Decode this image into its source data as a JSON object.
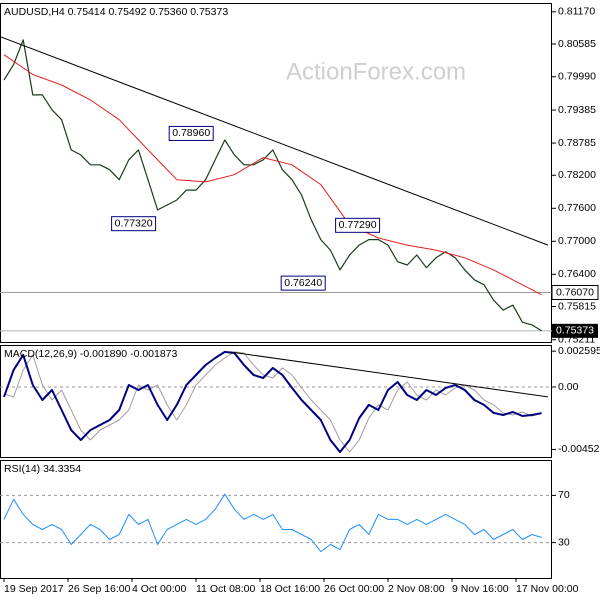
{
  "chart_data": [
    {
      "type": "line",
      "title": "AUDUSD,H4 0.75414 0.75492 0.75360 0.75373",
      "watermark": "ActionForex.com",
      "x": [
        0,
        3,
        6,
        9,
        12,
        15,
        18,
        21,
        24,
        27,
        30,
        33,
        36,
        39,
        42,
        45,
        48,
        51,
        54,
        57,
        60,
        63,
        66,
        69,
        72,
        75,
        78,
        81,
        84,
        87,
        90,
        93,
        96,
        99,
        102,
        105,
        108,
        111,
        114,
        117,
        120,
        123,
        126,
        129,
        132,
        135,
        138,
        141,
        144,
        147,
        150,
        153,
        156,
        159,
        162,
        165,
        168
      ],
      "xlim": [
        -1.25,
        171.25
      ],
      "ylim": [
        0.7517,
        0.8133
      ],
      "grid": false,
      "yticks": [
        {
          "value": 0.8117,
          "label": "0.81170"
        },
        {
          "value": 0.80585,
          "label": "0.80585"
        },
        {
          "value": 0.7999,
          "label": "0.79990"
        },
        {
          "value": 0.79385,
          "label": "0.79385"
        },
        {
          "value": 0.78785,
          "label": "0.78785"
        },
        {
          "value": 0.782,
          "label": "0.78200"
        },
        {
          "value": 0.776,
          "label": "0.77600"
        },
        {
          "value": 0.77,
          "label": "0.77000"
        },
        {
          "value": 0.764,
          "label": "0.76400"
        },
        {
          "value": 0.75815,
          "label": "0.75815"
        },
        0.75211
      ],
      "series": [
        {
          "color": "#1c3a1c",
          "line_width": 1.2,
          "values": [
            0.7993,
            0.8021,
            0.8066,
            0.7966,
            0.7966,
            0.7939,
            0.7921,
            0.7866,
            0.7857,
            0.7839,
            0.7839,
            0.783,
            0.7812,
            0.7848,
            0.7866,
            0.7812,
            0.7757,
            0.7766,
            0.7775,
            0.7793,
            0.7793,
            0.7812,
            0.7848,
            0.7884,
            0.7857,
            0.7839,
            0.7839,
            0.7848,
            0.7866,
            0.783,
            0.7812,
            0.7784,
            0.7739,
            0.7703,
            0.7684,
            0.7648,
            0.7675,
            0.7693,
            0.7703,
            0.7703,
            0.7693,
            0.7663,
            0.7657,
            0.7675,
            0.7652,
            0.767,
            0.7681,
            0.767,
            0.7648,
            0.763,
            0.7621,
            0.7593,
            0.7575,
            0.7584,
            0.7553,
            0.7548,
            0.75373
          ]
        },
        {
          "color": "#e02020",
          "line_width": 1,
          "x": [
            0,
            9,
            18,
            27,
            36,
            45,
            54,
            63,
            72,
            81,
            90,
            99,
            108,
            117,
            126,
            135,
            144,
            153,
            162,
            168
          ],
          "values": [
            0.8039,
            0.8003,
            0.7984,
            0.7957,
            0.7921,
            0.7866,
            0.7812,
            0.7808,
            0.7821,
            0.7852,
            0.7839,
            0.7803,
            0.773,
            0.7706,
            0.7693,
            0.7684,
            0.767,
            0.7648,
            0.7621,
            0.7603
          ]
        },
        {
          "color": "#000000",
          "line_width": 1,
          "x": [
            -1.25,
            170
          ],
          "values": [
            0.8072,
            0.7693
          ]
        }
      ],
      "annotations": [
        {
          "x": 66,
          "value": 0.7896,
          "label": "0.78960"
        },
        {
          "x": 48,
          "value": 0.7732,
          "label": "0.77320"
        },
        {
          "x": 118,
          "value": 0.7729,
          "label": "0.77290"
        },
        {
          "x": 101,
          "value": 0.7624,
          "label": "0.76240"
        }
      ],
      "levels": [
        {
          "value": 0.7607,
          "label": "0.76070",
          "color": "#9a9a9a"
        }
      ],
      "last_price": 0.75373
    },
    {
      "type": "line",
      "title": "MACD(12,26,9) -0.001890 -0.001873",
      "x": [
        0,
        3,
        6,
        9,
        12,
        15,
        18,
        21,
        24,
        27,
        30,
        33,
        36,
        39,
        42,
        45,
        48,
        51,
        54,
        57,
        60,
        63,
        66,
        69,
        72,
        75,
        78,
        81,
        84,
        87,
        90,
        93,
        96,
        99,
        102,
        105,
        108,
        111,
        114,
        117,
        120,
        123,
        126,
        129,
        132,
        135,
        138,
        141,
        144,
        147,
        150,
        153,
        156,
        159,
        162,
        165,
        168
      ],
      "xlim": [
        -1.25,
        171.25
      ],
      "ylim": [
        -0.00507,
        0.00304
      ],
      "grid": true,
      "yticks": [
        0.002595,
        {
          "value": 0,
          "label": "0.00"
        },
        -0.004522
      ],
      "grid_ticks": [
        1
      ],
      "series": [
        {
          "color": "#a0a0a0",
          "line_width": 1,
          "values": [
            -0.0005,
            -0.00072,
            0.00123,
            0.00232,
            0.00014,
            -0.00094,
            -0.00022,
            -0.00167,
            -0.00312,
            -0.00384,
            -0.00312,
            -0.00275,
            -0.00239,
            -0.00167,
            0.00014,
            -0.00022,
            0.00014,
            -0.0013,
            -0.00239,
            -0.0013,
            0.00014,
            0.00087,
            0.00159,
            0.0021,
            0.00254,
            0.00246,
            0.00159,
            0.00087,
            0.00065,
            0.00138,
            0.00087,
            -7e-05,
            -0.00094,
            -0.00167,
            -0.00239,
            -0.00384,
            -0.00471,
            -0.00384,
            -0.00225,
            -0.0013,
            -0.00167,
            -0.00022,
            0.00036,
            -0.00058,
            -0.00094,
            -0.00022,
            -0.00058,
            -7e-05,
            0.00014,
            -0.00022,
            -0.00094,
            -0.0013,
            -0.00188,
            -0.00203,
            -0.00181,
            -0.0021,
            -0.001873
          ]
        },
        {
          "color": "#000080",
          "line_width": 2,
          "values": [
            -0.00072,
            0.00123,
            0.00232,
            0.00014,
            -0.00094,
            -0.00022,
            -0.00167,
            -0.00312,
            -0.00384,
            -0.00312,
            -0.00275,
            -0.00239,
            -0.00167,
            0.00014,
            -0.00022,
            0.00014,
            -0.0013,
            -0.00239,
            -0.0013,
            0.00014,
            0.00087,
            0.00159,
            0.0021,
            0.00254,
            0.00246,
            0.00159,
            0.00087,
            0.00065,
            0.00138,
            0.00087,
            -7e-05,
            -0.00094,
            -0.00167,
            -0.00239,
            -0.00384,
            -0.00471,
            -0.00384,
            -0.00225,
            -0.0013,
            -0.00167,
            -0.00022,
            0.00036,
            -0.00058,
            -0.00094,
            -0.00022,
            -0.00058,
            -7e-05,
            0.00014,
            -0.00022,
            -0.00094,
            -0.0013,
            -0.00188,
            -0.00203,
            -0.00181,
            -0.0021,
            -0.00203,
            -0.00189
          ]
        },
        {
          "color": "#000000",
          "line_width": 1,
          "x": [
            70.6,
            170
          ],
          "values": [
            0.00254,
            -0.00072
          ]
        }
      ]
    },
    {
      "type": "line",
      "title": "RSI(14) 34.3354",
      "x": [
        0,
        3,
        6,
        9,
        12,
        15,
        18,
        21,
        24,
        27,
        30,
        33,
        36,
        39,
        42,
        45,
        48,
        51,
        54,
        57,
        60,
        63,
        66,
        69,
        72,
        75,
        78,
        81,
        84,
        87,
        90,
        93,
        96,
        99,
        102,
        105,
        108,
        111,
        114,
        117,
        120,
        123,
        126,
        129,
        132,
        135,
        138,
        141,
        144,
        147,
        150,
        153,
        156,
        159,
        162,
        165,
        168
      ],
      "xlim": [
        -1.25,
        171.25
      ],
      "ylim": [
        0,
        100
      ],
      "grid": true,
      "yticks": [
        70,
        30
      ],
      "grid_ticks": [
        0,
        1
      ],
      "xticks": [
        {
          "value": 0,
          "label": "19 Sep 2017"
        },
        {
          "value": 20,
          "label": "26 Sep 16:00"
        },
        {
          "value": 40,
          "label": "4 Oct 00:00"
        },
        {
          "value": 60,
          "label": "11 Oct 08:00"
        },
        {
          "value": 80,
          "label": "18 Oct 16:00"
        },
        {
          "value": 100,
          "label": "26 Oct 00:00"
        },
        {
          "value": 120,
          "label": "2 Nov 08:00"
        },
        {
          "value": 140,
          "label": "9 Nov 16:00"
        },
        {
          "value": 160,
          "label": "17 Nov 00:00"
        }
      ],
      "series": [
        {
          "color": "#1e90ff",
          "line_width": 1,
          "values": [
            49.7,
            66.7,
            53.9,
            45.4,
            41.1,
            45.4,
            41.1,
            28.4,
            36.9,
            45.4,
            41.1,
            32.6,
            36.9,
            53.9,
            45.4,
            49.7,
            28.4,
            41.1,
            45.4,
            49.7,
            45.4,
            49.7,
            58.2,
            71.0,
            58.2,
            49.7,
            53.9,
            49.7,
            53.9,
            41.1,
            41.1,
            36.9,
            32.6,
            22.4,
            28.4,
            24.1,
            41.1,
            45.4,
            36.9,
            53.9,
            49.7,
            49.7,
            45.4,
            49.7,
            45.4,
            49.7,
            53.9,
            49.7,
            45.4,
            36.9,
            41.1,
            32.6,
            36.9,
            41.1,
            32.6,
            36.9,
            34.3
          ]
        }
      ]
    }
  ]
}
